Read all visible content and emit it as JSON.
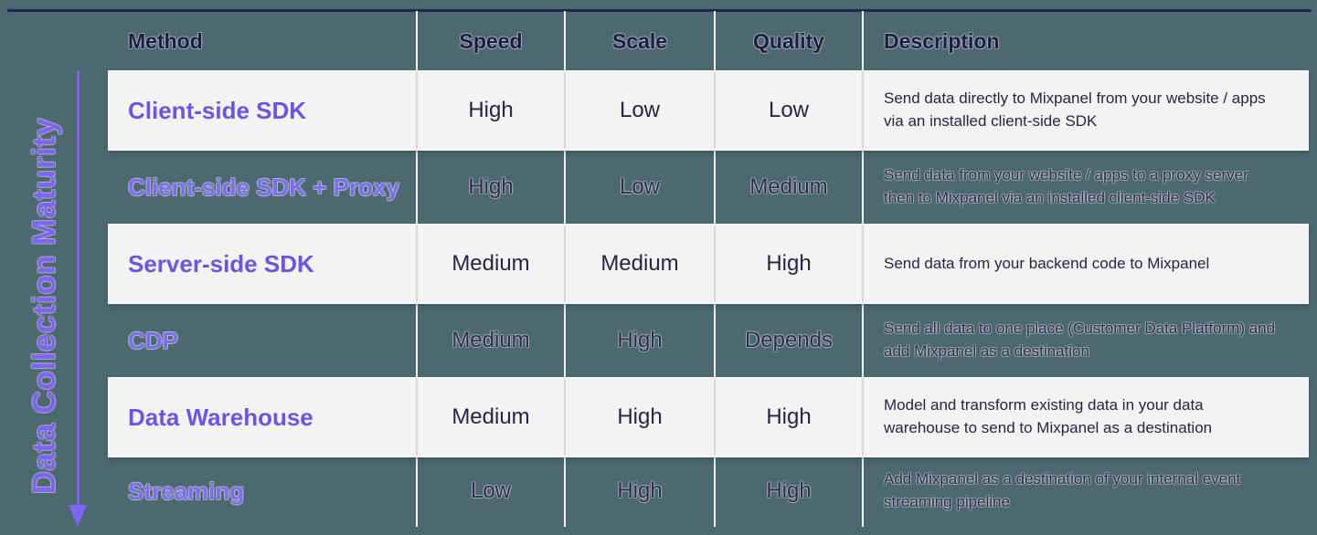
{
  "maturity_axis": {
    "label": "Data Collection Maturity"
  },
  "table": {
    "headers": [
      "Method",
      "Speed",
      "Scale",
      "Quality",
      "Description"
    ],
    "rows": [
      {
        "method": "Client-side SDK",
        "speed": "High",
        "scale": "Low",
        "quality": "Low",
        "description": "Send data directly to Mixpanel from your website / apps via an installed client-side SDK"
      },
      {
        "method": "Client-side SDK + Proxy",
        "speed": "High",
        "scale": "Low",
        "quality": "Medium",
        "description": "Send data from your website / apps to a proxy server then to Mixpanel via an installed client-side SDK"
      },
      {
        "method": "Server-side SDK",
        "speed": "Medium",
        "scale": "Medium",
        "quality": "High",
        "description": "Send data from your backend code to Mixpanel"
      },
      {
        "method": "CDP",
        "speed": "Medium",
        "scale": "High",
        "quality": "Depends",
        "description": "Send all data to one place (Customer Data Platform) and add Mixpanel as a destination"
      },
      {
        "method": "Data Warehouse",
        "speed": "Medium",
        "scale": "High",
        "quality": "High",
        "description": "Model and transform existing data in your data warehouse to send to Mixpanel as a destination"
      },
      {
        "method": "Streaming",
        "speed": "Low",
        "scale": "High",
        "quality": "High",
        "description": "Add Mixpanel as a destination of your internal event streaming pipeline"
      }
    ]
  },
  "colors": {
    "background": "#4d6970",
    "row_light": "#f4f3f3",
    "accent_purple": "#6a55e6",
    "accent_purple_bright": "#7f64f2",
    "text_dark": "#2c2248",
    "header_text": "#211a46",
    "top_line": "#2a2058"
  }
}
